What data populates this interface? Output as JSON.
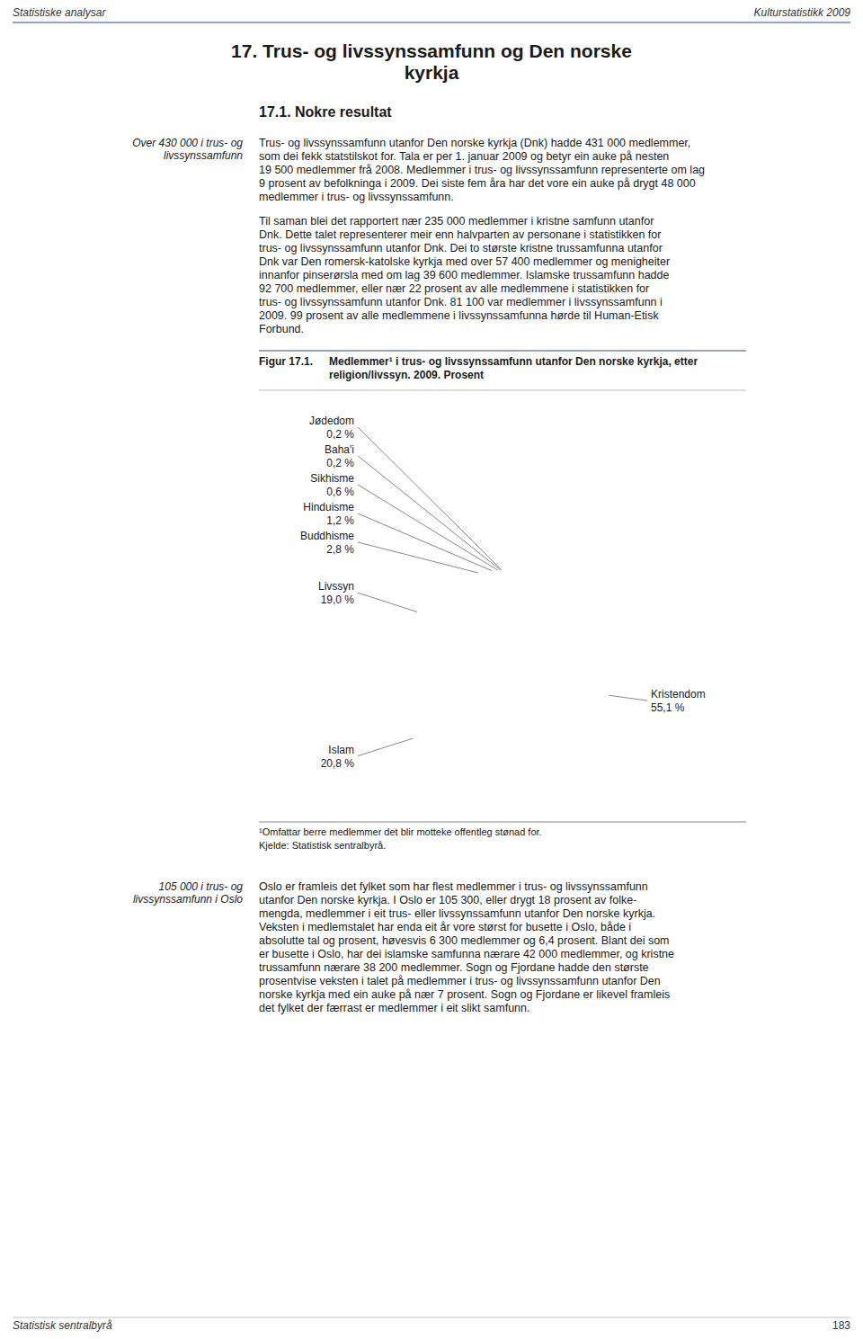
{
  "page_header_left": "Statistiske analysar",
  "page_header_right": "Kulturstatistikk 2009",
  "chapter_title": [
    "17.  Trus- og livssynssamfunn og Den norske",
    "kyrkja"
  ],
  "section_title": "17.1.  Nokre resultat",
  "left_margin_text1": [
    "Over 430 000 i trus- og",
    "livssynssamfunn"
  ],
  "body1_lines": [
    "Trus- og livssynssamfunn utanfor Den norske kyrkja (Dnk) hadde 431 000 medlemmer,",
    "som dei fekk statstilskot for. Tala er per 1. januar 2009 og betyr ein auke på nesten",
    "19 500 medlemmer frå 2008. Medlemmer i trus- og livssynssamfunn representerte om lag",
    "9 prosent av befolkninga i 2009. Dei siste fem åra har det vore ein auke på drygt 48 000",
    "medlemmer i trus- og livssynssamfunn."
  ],
  "body2_lines": [
    "Til saman blei det rapportert nær 235 000 medlemmer i kristne samfunn utanfor",
    "Dnk. Dette talet representerer meir enn halvparten av personane i statistikken for",
    "trus- og livssynssamfunn utanfor Dnk. Dei to største kristne trussamfunna utanfor",
    "Dnk var Den romersk-katolske kyrkja med over 57 400 medlemmer og menigheiter",
    "innanfor pinserørsla med om lag 39 600 medlemmer. Islamske trussamfunn hadde",
    "92 700 medlemmer, eller nær 22 prosent av alle medlemmene i statistikken for",
    "trus- og livssynssamfunn utanfor Dnk. 81 100 var medlemmer i livssynssamfunn i",
    "2009. 99 prosent av alle medlemmene i livssynssamfunna hørde til Human-Etisk",
    "Forbund."
  ],
  "left_margin_text2": [
    "105 000 i trus- og",
    "livssynssamfunn i Oslo"
  ],
  "body3_lines": [
    "Oslo er framleis det fylket som har flest medlemmer i trus- og livssynssamfunn",
    "utanfor Den norske kyrkja. I Oslo er 105 300, eller drygt 18 prosent av folke-",
    "mengda, medlemmer i eit trus- eller livssynssamfunn utanfor Den norske kyrkja.",
    "Veksten i medlemstalet har enda eit år vore størst for busette i Oslo, både i",
    "absolutte tal og prosent, høvesvis 6 300 medlemmer og 6,4 prosent. Blant dei som",
    "er busette i Oslo, har dei islamske samfunna nærare 42 000 medlemmer, og kristne",
    "trussamfunn nærare 38 200 medlemmer. Sogn og Fjordane hadde den største",
    "prosentvise veksten i talet på medlemmer i trus- og livssynssamfunn utanfor Den",
    "norske kyrkja med ein auke på nær 7 prosent. Sogn og Fjordane er likevel framleis",
    "det fylket der færrast er medlemmer i eit slikt samfunn."
  ],
  "page_footer_left": "Statistisk sentralbyrå",
  "page_footer_right": "183",
  "chart_data": {
    "type": "pie",
    "figure_label": "Figur 17.1.",
    "title": [
      "Medlemmer¹ i trus- og livssynssamfunn utanfor Den norske kyrkja, etter",
      "religion/livssyn. 2009. Prosent"
    ],
    "categories": [
      "Kristendom",
      "Islam",
      "Livssyn",
      "Buddhisme",
      "Hinduisme",
      "Sikhisme",
      "Baha'i",
      "Jødedom"
    ],
    "values": [
      55.1,
      20.8,
      19.0,
      2.8,
      1.2,
      0.6,
      0.2,
      0.2
    ],
    "value_labels": [
      "55,1 %",
      "20,8 %",
      "19,0 %",
      "2,8 %",
      "1,2 %",
      "0,6 %",
      "0,2 %",
      "0,2 %"
    ],
    "colors": [
      "#f2d8bc",
      "#e8883a",
      "#c8c8cc",
      "#2e4a7a",
      "#7a9ab8",
      "#3a7a6a",
      "#f0d8c0",
      "#d8d8cc"
    ],
    "data_labels": true,
    "annotations": [
      "¹Omfattar berre medlemmer det blir motteke offentleg stønad for.",
      "Kjelde: Statistisk sentralbyrå."
    ]
  }
}
